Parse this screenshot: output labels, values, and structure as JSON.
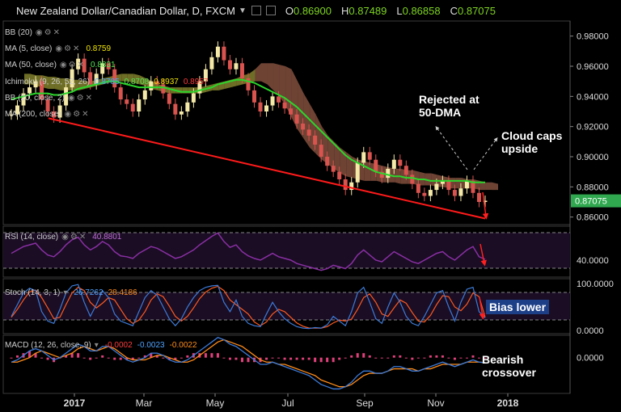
{
  "header": {
    "title": "New Zealand Dollar/Canadian Dollar, D, FXCM",
    "ohlc": [
      {
        "key": "O",
        "value": "0.86900"
      },
      {
        "key": "H",
        "value": "0.87489"
      },
      {
        "key": "L",
        "value": "0.86858"
      },
      {
        "key": "C",
        "value": "0.87075"
      }
    ]
  },
  "legend": {
    "bb_main": "BB (20)",
    "ma5": {
      "label": "MA (5, close)",
      "value": "0.8759"
    },
    "ma50": {
      "label": "MA (50, close)",
      "value": "0.8831"
    },
    "ichimoku": {
      "label": "Ichimoku (9, 26, 52, 26)",
      "values": [
        "0.8785",
        "0.8708",
        "0.8937",
        "0.8957"
      ]
    },
    "bb": {
      "label": "BB (20, close, 2)"
    },
    "ma200": {
      "label": "MA (200, close)"
    }
  },
  "rsi": {
    "label": "RSI (14, close)",
    "value": "40.8801"
  },
  "stoch": {
    "label": "Stoch (14, 3, 1)",
    "k": "26.7262",
    "d": "28.4186"
  },
  "macd": {
    "label": "MACD (12, 26, close, 9)",
    "hist": "-0.0002",
    "macd": "-0.0023",
    "signal": "-0.0022"
  },
  "annotations": {
    "rejected": [
      "Rejected at",
      "50-DMA"
    ],
    "cloud": [
      "Cloud caps",
      "upside"
    ],
    "bias": "Bias lower",
    "bearish": [
      "Bearish",
      "crossover"
    ]
  },
  "colors": {
    "background": "#000000",
    "bullish_candle": "#f5e9a8",
    "bearish_candle": "#d9534f",
    "ma50": "#2bd62b",
    "trendline": "#ff1a1a",
    "cloud_bearish": "#7a4a3a",
    "cloud_bullish": "#7a7a2a",
    "rsi_line": "#8a2fa3",
    "stoch_k": "#3d7bd9",
    "stoch_d": "#ff5a1f",
    "macd_line": "#3d7bd9",
    "signal_line": "#ff8c1a",
    "macd_hist": "#e0407a"
  },
  "chart_data": [
    {
      "type": "line",
      "name": "price",
      "x_ticks": [
        "2017",
        "Mar",
        "May",
        "Jul",
        "Sep",
        "Nov",
        "2018"
      ],
      "y_ticks": [
        "0.98000",
        "0.96000",
        "0.94000",
        "0.92000",
        "0.90000",
        "0.88000",
        "0.86000"
      ],
      "last_price": "0.87075",
      "ylim": [
        0.855,
        0.99
      ],
      "close": [
        0.928,
        0.934,
        0.942,
        0.946,
        0.95,
        0.938,
        0.93,
        0.926,
        0.934,
        0.946,
        0.958,
        0.965,
        0.956,
        0.948,
        0.955,
        0.962,
        0.958,
        0.946,
        0.938,
        0.935,
        0.93,
        0.938,
        0.944,
        0.95,
        0.948,
        0.942,
        0.935,
        0.928,
        0.93,
        0.936,
        0.942,
        0.95,
        0.958,
        0.966,
        0.973,
        0.964,
        0.958,
        0.962,
        0.952,
        0.944,
        0.936,
        0.93,
        0.934,
        0.94,
        0.936,
        0.932,
        0.928,
        0.922,
        0.918,
        0.914,
        0.908,
        0.9,
        0.894,
        0.89,
        0.885,
        0.878,
        0.883,
        0.896,
        0.903,
        0.898,
        0.89,
        0.886,
        0.892,
        0.898,
        0.894,
        0.888,
        0.882,
        0.876,
        0.874,
        0.878,
        0.882,
        0.884,
        0.878,
        0.874,
        0.879,
        0.884,
        0.876,
        0.87,
        0.8708
      ],
      "ma50": [
        0.938,
        0.939,
        0.94,
        0.941,
        0.942,
        0.942,
        0.942,
        0.941,
        0.941,
        0.942,
        0.943,
        0.945,
        0.946,
        0.947,
        0.948,
        0.949,
        0.95,
        0.95,
        0.949,
        0.948,
        0.947,
        0.946,
        0.946,
        0.946,
        0.946,
        0.946,
        0.945,
        0.944,
        0.943,
        0.943,
        0.943,
        0.944,
        0.945,
        0.946,
        0.948,
        0.949,
        0.95,
        0.951,
        0.951,
        0.95,
        0.949,
        0.947,
        0.945,
        0.943,
        0.941,
        0.939,
        0.936,
        0.933,
        0.929,
        0.925,
        0.921,
        0.917,
        0.913,
        0.909,
        0.905,
        0.901,
        0.898,
        0.896,
        0.894,
        0.892,
        0.89,
        0.889,
        0.888,
        0.887,
        0.887,
        0.886,
        0.886,
        0.885,
        0.885,
        0.884,
        0.884,
        0.884,
        0.884,
        0.884,
        0.884,
        0.884,
        0.883,
        0.883,
        0.883
      ],
      "cloud_top": [
        0.955,
        0.955,
        0.954,
        0.954,
        0.953,
        0.953,
        0.952,
        0.952,
        0.951,
        0.951,
        0.95,
        0.95,
        0.951,
        0.952,
        0.953,
        0.954,
        0.955,
        0.955,
        0.955,
        0.954,
        0.952,
        0.95,
        0.948,
        0.947,
        0.946,
        0.946,
        0.946,
        0.946,
        0.946,
        0.946,
        0.947,
        0.948,
        0.949,
        0.95,
        0.951,
        0.952,
        0.954,
        0.955,
        0.958,
        0.962,
        0.962,
        0.962,
        0.961,
        0.96,
        0.958,
        0.95,
        0.942,
        0.935,
        0.928,
        0.92,
        0.914,
        0.91,
        0.906,
        0.903,
        0.9,
        0.898,
        0.897,
        0.896,
        0.895,
        0.894,
        0.893,
        0.892,
        0.892,
        0.891,
        0.891,
        0.89,
        0.889,
        0.889,
        0.888,
        0.887,
        0.886,
        0.886,
        0.886,
        0.885,
        0.885,
        0.884,
        0.883,
        0.883,
        0.882
      ],
      "cloud_bottom": [
        0.948,
        0.948,
        0.947,
        0.946,
        0.945,
        0.945,
        0.944,
        0.944,
        0.944,
        0.944,
        0.945,
        0.946,
        0.947,
        0.948,
        0.949,
        0.95,
        0.95,
        0.95,
        0.949,
        0.948,
        0.947,
        0.945,
        0.944,
        0.943,
        0.942,
        0.942,
        0.942,
        0.942,
        0.942,
        0.942,
        0.943,
        0.944,
        0.944,
        0.945,
        0.946,
        0.947,
        0.948,
        0.949,
        0.95,
        0.95,
        0.948,
        0.944,
        0.94,
        0.934,
        0.926,
        0.918,
        0.912,
        0.906,
        0.902,
        0.898,
        0.895,
        0.892,
        0.889,
        0.887,
        0.886,
        0.885,
        0.884,
        0.884,
        0.884,
        0.883,
        0.883,
        0.883,
        0.882,
        0.882,
        0.882,
        0.881,
        0.881,
        0.881,
        0.88,
        0.88,
        0.879,
        0.879,
        0.879,
        0.879,
        0.879,
        0.878,
        0.878,
        0.878,
        0.878
      ]
    },
    {
      "type": "line",
      "name": "RSI (14, close)",
      "y_ticks": [
        "40.0000"
      ],
      "ylim": [
        20,
        80
      ],
      "values": [
        48,
        52,
        56,
        58,
        60,
        52,
        46,
        44,
        50,
        58,
        64,
        67,
        58,
        52,
        56,
        62,
        58,
        50,
        45,
        44,
        42,
        48,
        52,
        56,
        54,
        50,
        46,
        42,
        44,
        48,
        52,
        58,
        63,
        68,
        72,
        62,
        55,
        58,
        50,
        45,
        42,
        40,
        44,
        48,
        44,
        42,
        40,
        36,
        34,
        32,
        30,
        28,
        30,
        34,
        32,
        30,
        36,
        46,
        52,
        46,
        40,
        38,
        44,
        50,
        46,
        42,
        38,
        36,
        40,
        44,
        48,
        50,
        44,
        40,
        46,
        52,
        56,
        44,
        40.88
      ]
    },
    {
      "type": "line",
      "name": "Stoch (14, 3, 1)",
      "y_ticks": [
        "100.0000",
        "0.0000"
      ],
      "ylim": [
        0,
        100
      ],
      "k": [
        30,
        55,
        80,
        90,
        85,
        40,
        20,
        15,
        45,
        80,
        95,
        98,
        60,
        30,
        55,
        85,
        70,
        35,
        20,
        15,
        10,
        40,
        70,
        85,
        75,
        50,
        25,
        10,
        25,
        50,
        70,
        85,
        92,
        95,
        96,
        60,
        40,
        65,
        30,
        15,
        10,
        8,
        35,
        60,
        40,
        25,
        15,
        8,
        5,
        4,
        6,
        5,
        12,
        30,
        20,
        10,
        40,
        80,
        92,
        60,
        25,
        15,
        50,
        80,
        60,
        30,
        15,
        10,
        30,
        55,
        80,
        85,
        50,
        20,
        60,
        88,
        92,
        40,
        26.73
      ],
      "d": [
        28,
        45,
        65,
        82,
        86,
        70,
        48,
        25,
        28,
        55,
        80,
        92,
        85,
        60,
        48,
        58,
        70,
        65,
        45,
        25,
        15,
        22,
        40,
        65,
        78,
        72,
        52,
        30,
        20,
        30,
        48,
        68,
        82,
        90,
        94,
        85,
        65,
        55,
        45,
        35,
        18,
        10,
        18,
        35,
        45,
        40,
        28,
        16,
        9,
        5,
        5,
        5,
        8,
        16,
        22,
        20,
        24,
        45,
        70,
        78,
        60,
        35,
        30,
        48,
        65,
        58,
        38,
        20,
        18,
        32,
        55,
        74,
        72,
        50,
        42,
        56,
        80,
        72,
        28.42
      ]
    },
    {
      "type": "line",
      "name": "MACD (12, 26, close, 9)",
      "y_ticks": [
        "0.0000"
      ],
      "ylim": [
        -0.016,
        0.01
      ],
      "macd": [
        -0.002,
        -0.001,
        0.001,
        0.003,
        0.004,
        0.003,
        0.001,
        -0.001,
        0.0,
        0.002,
        0.004,
        0.006,
        0.005,
        0.003,
        0.003,
        0.005,
        0.005,
        0.003,
        0.001,
        -0.001,
        -0.002,
        -0.001,
        0.0,
        0.002,
        0.002,
        0.001,
        -0.001,
        -0.002,
        -0.002,
        -0.001,
        0.001,
        0.003,
        0.005,
        0.007,
        0.009,
        0.008,
        0.006,
        0.005,
        0.003,
        0.001,
        -0.001,
        -0.003,
        -0.003,
        -0.002,
        -0.003,
        -0.004,
        -0.005,
        -0.006,
        -0.007,
        -0.008,
        -0.01,
        -0.012,
        -0.013,
        -0.014,
        -0.014,
        -0.013,
        -0.011,
        -0.008,
        -0.006,
        -0.006,
        -0.007,
        -0.007,
        -0.006,
        -0.004,
        -0.004,
        -0.005,
        -0.006,
        -0.006,
        -0.005,
        -0.004,
        -0.003,
        -0.002,
        -0.003,
        -0.004,
        -0.003,
        -0.002,
        -0.001,
        -0.002,
        -0.0023
      ],
      "signal": [
        -0.002,
        -0.002,
        -0.001,
        0.0,
        0.002,
        0.003,
        0.002,
        0.001,
        0.0,
        0.001,
        0.002,
        0.004,
        0.005,
        0.004,
        0.003,
        0.004,
        0.005,
        0.004,
        0.002,
        0.0,
        -0.001,
        -0.001,
        -0.001,
        0.0,
        0.001,
        0.001,
        0.0,
        -0.001,
        -0.002,
        -0.002,
        -0.001,
        0.001,
        0.003,
        0.005,
        0.007,
        0.008,
        0.007,
        0.006,
        0.005,
        0.003,
        0.001,
        -0.001,
        -0.002,
        -0.002,
        -0.003,
        -0.003,
        -0.004,
        -0.005,
        -0.006,
        -0.007,
        -0.008,
        -0.01,
        -0.011,
        -0.012,
        -0.013,
        -0.013,
        -0.012,
        -0.01,
        -0.008,
        -0.007,
        -0.007,
        -0.007,
        -0.006,
        -0.005,
        -0.005,
        -0.005,
        -0.005,
        -0.006,
        -0.005,
        -0.005,
        -0.004,
        -0.003,
        -0.003,
        -0.003,
        -0.003,
        -0.002,
        -0.002,
        -0.002,
        -0.0022
      ],
      "hist": [
        0.0,
        0.001,
        0.002,
        0.003,
        0.002,
        0.0,
        -0.001,
        -0.002,
        0.0,
        0.001,
        0.002,
        0.002,
        0.0,
        -0.001,
        0.0,
        0.001,
        0.0,
        -0.001,
        -0.001,
        -0.001,
        -0.001,
        0.0,
        0.001,
        0.002,
        0.001,
        0.0,
        -0.001,
        -0.001,
        0.0,
        0.001,
        0.002,
        0.002,
        0.002,
        0.002,
        0.002,
        0.0,
        -0.001,
        -0.001,
        -0.002,
        -0.002,
        -0.002,
        -0.002,
        -0.001,
        0.0,
        0.0,
        -0.001,
        -0.001,
        -0.001,
        -0.001,
        -0.001,
        -0.002,
        -0.002,
        -0.002,
        -0.002,
        -0.001,
        0.0,
        0.001,
        0.002,
        0.002,
        0.001,
        0.0,
        0.0,
        0.0,
        0.001,
        0.001,
        0.0,
        -0.001,
        0.0,
        0.0,
        0.001,
        0.001,
        0.001,
        0.0,
        -0.001,
        0.0,
        0.0,
        0.001,
        0.0,
        -0.0002
      ]
    }
  ]
}
